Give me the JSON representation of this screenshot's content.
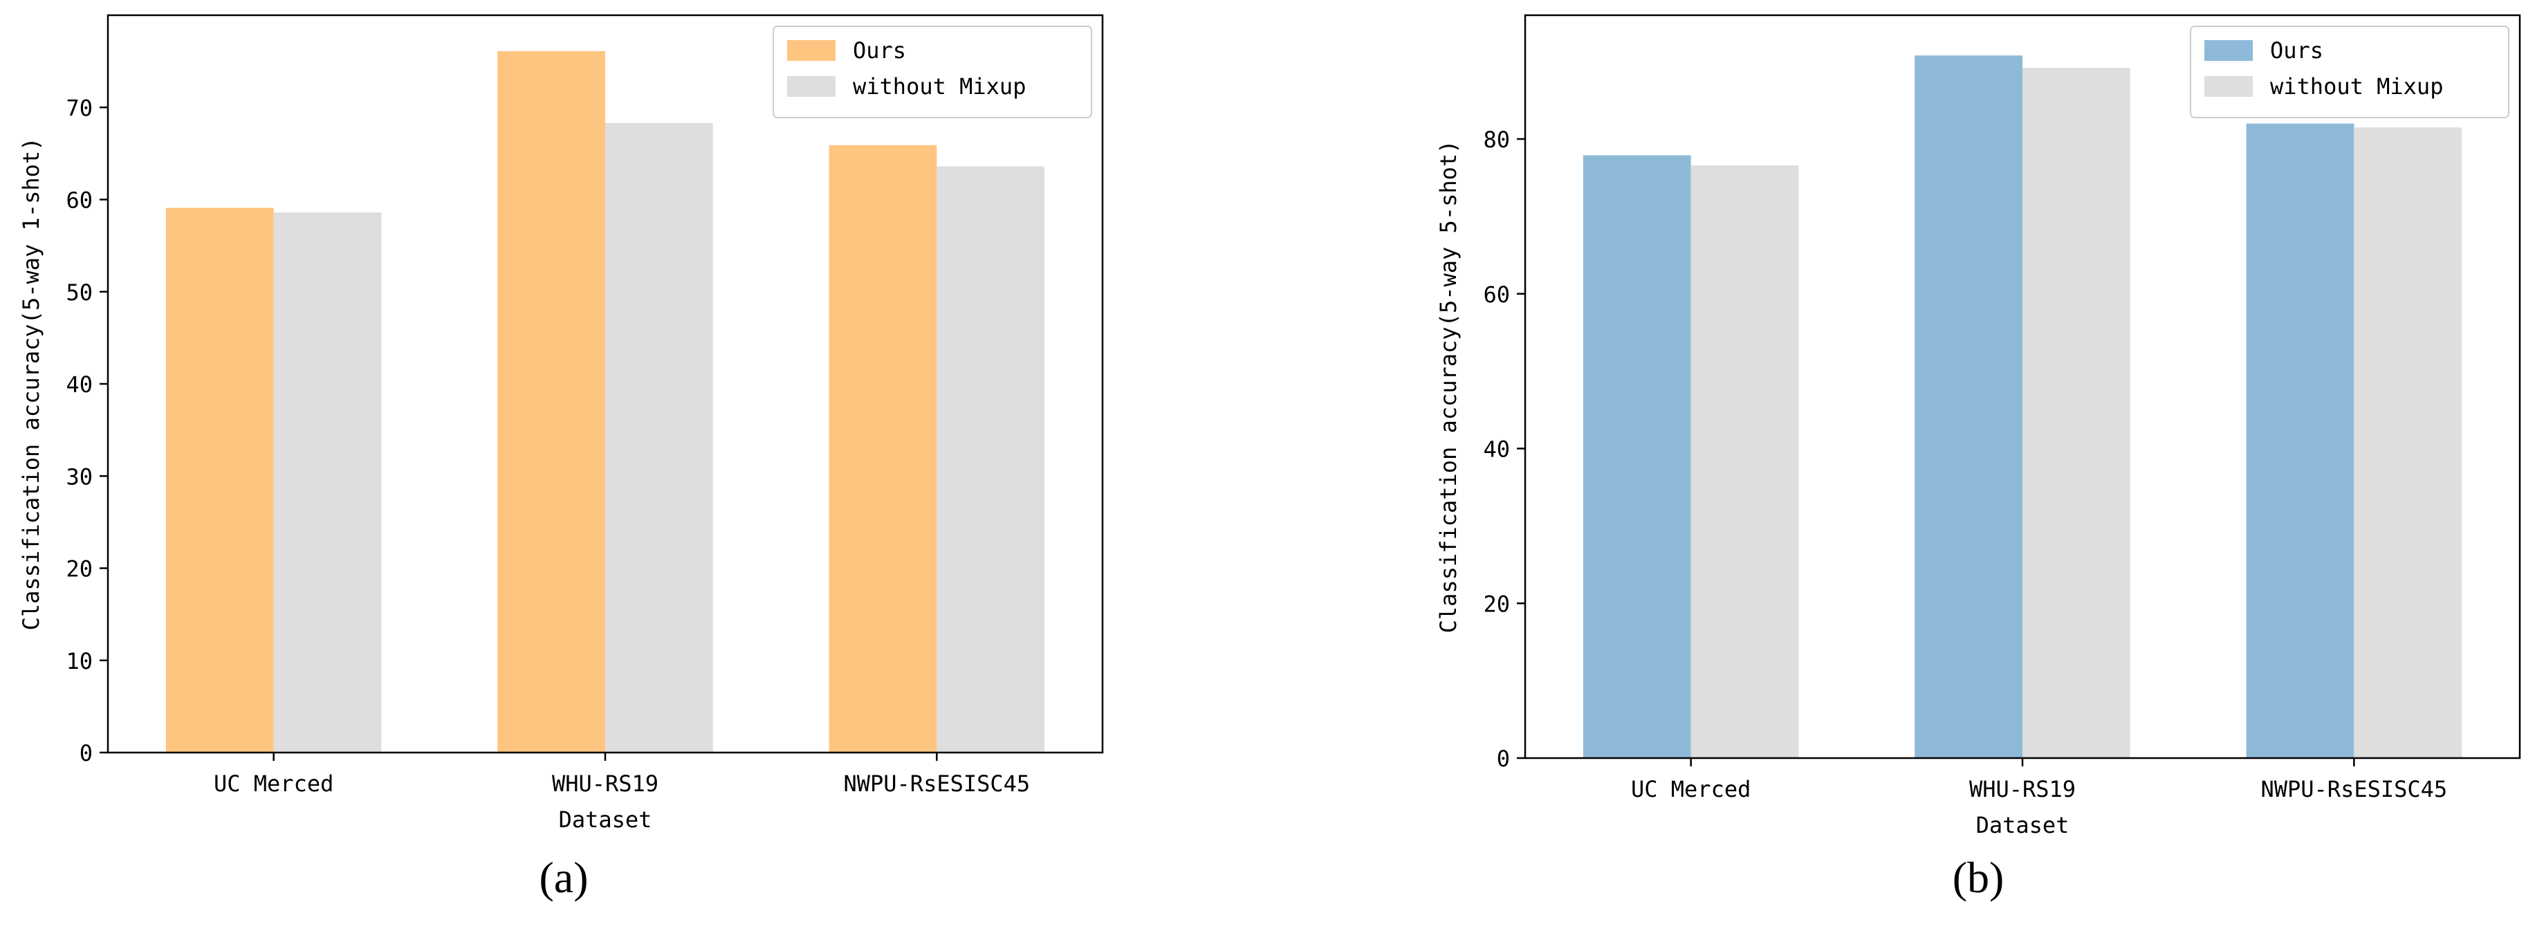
{
  "chart_data": [
    {
      "type": "bar",
      "panel_label": "a",
      "title": "",
      "xlabel": "Dataset",
      "ylabel": "Classification accuracy(5-way 1-shot)",
      "categories": [
        "UC Merced",
        "WHU-RS19",
        "NWPU-RsESISC45"
      ],
      "series": [
        {
          "name": "Ours",
          "values": [
            59.1,
            76.1,
            65.9
          ],
          "color": "#fec580"
        },
        {
          "name": "without Mixup",
          "values": [
            58.6,
            68.3,
            63.6
          ],
          "color": "#dedede"
        }
      ],
      "ylim": [
        0,
        80
      ],
      "yticks": [
        0,
        10,
        20,
        30,
        40,
        50,
        60,
        70
      ],
      "grid": false,
      "legend_position": "top-right"
    },
    {
      "type": "bar",
      "panel_label": "b",
      "title": "",
      "xlabel": "Dataset",
      "ylabel": "Classification accuracy(5-way 5-shot)",
      "categories": [
        "UC Merced",
        "WHU-RS19",
        "NWPU-RsESISC45"
      ],
      "series": [
        {
          "name": "Ours",
          "values": [
            77.9,
            90.8,
            82.0
          ],
          "color": "#8fb9d8"
        },
        {
          "name": "without Mixup",
          "values": [
            76.6,
            89.2,
            81.5
          ],
          "color": "#dedede"
        }
      ],
      "ylim": [
        0,
        96
      ],
      "yticks": [
        0,
        20,
        40,
        60,
        80
      ],
      "grid": false,
      "legend_position": "top-right"
    }
  ]
}
